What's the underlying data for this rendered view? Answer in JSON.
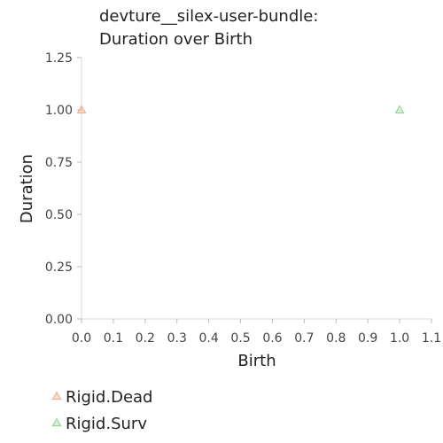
{
  "chart_data": {
    "type": "scatter",
    "title_lines": [
      "devture__silex-user-bundle:",
      "Duration over Birth"
    ],
    "xlabel": "Birth",
    "ylabel": "Duration",
    "xlim": [
      0.0,
      1.1
    ],
    "ylim": [
      0.0,
      1.25
    ],
    "x_ticks": [
      "0.0",
      "0.1",
      "0.2",
      "0.3",
      "0.4",
      "0.5",
      "0.6",
      "0.7",
      "0.8",
      "0.9",
      "1.0",
      "1.1"
    ],
    "y_ticks": [
      "0.00",
      "0.25",
      "0.50",
      "0.75",
      "1.00",
      "1.25"
    ],
    "grid": false,
    "legend_position": "bottom-left",
    "series": [
      {
        "name": "Rigid.Dead",
        "marker": "triangle",
        "color": "#f4a582",
        "points": [
          {
            "x": 0.0,
            "y": 1.0
          }
        ]
      },
      {
        "name": "Rigid.Surv",
        "marker": "triangle",
        "color": "#8fd18f",
        "points": [
          {
            "x": 1.0,
            "y": 1.0
          }
        ]
      }
    ]
  }
}
